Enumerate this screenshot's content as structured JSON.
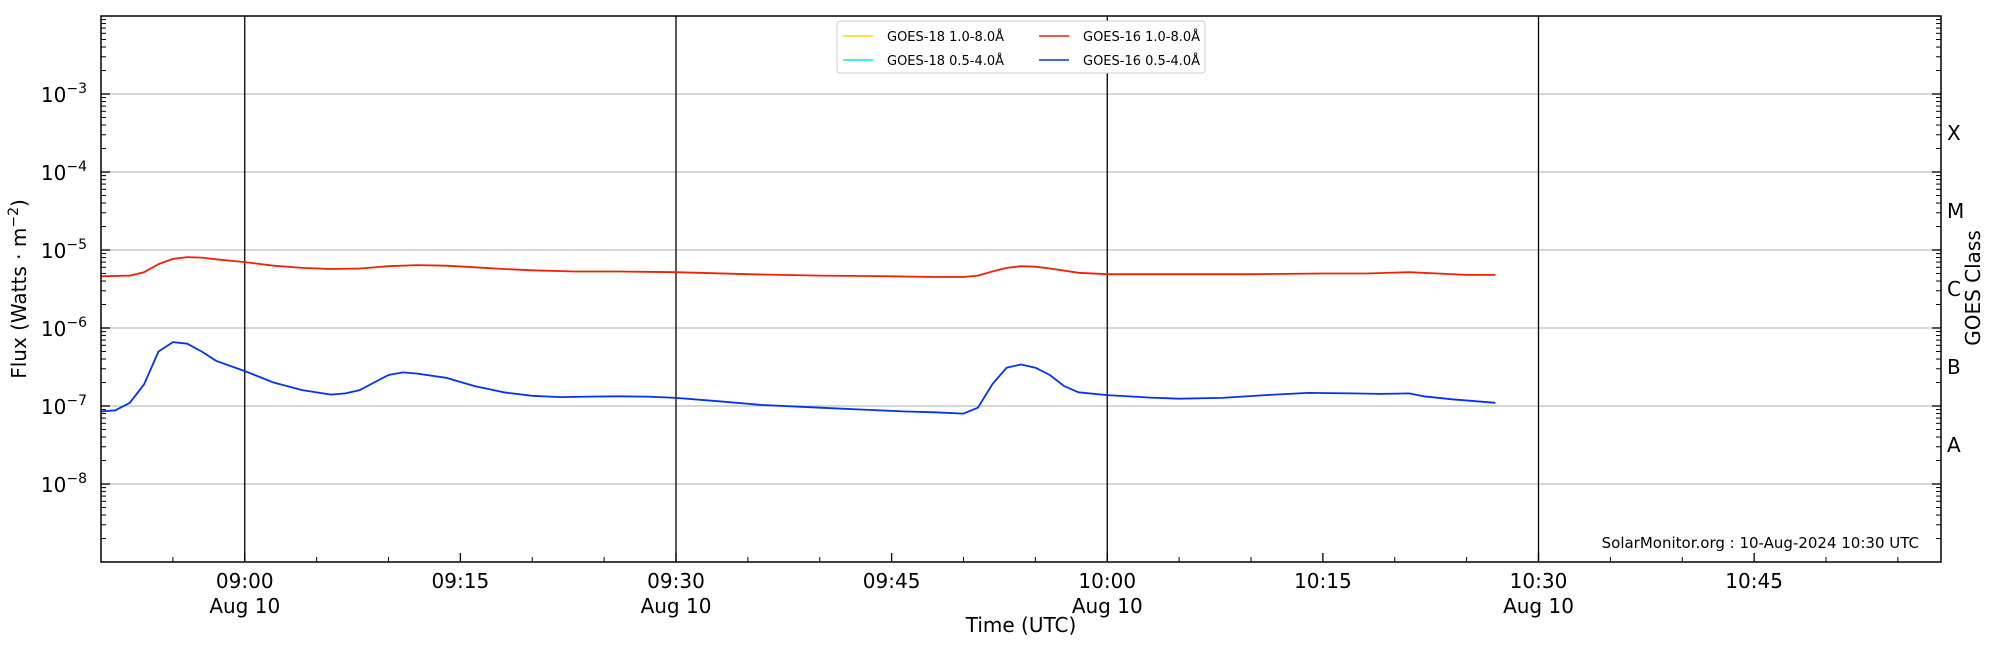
{
  "chart_data": {
    "type": "line",
    "title": "",
    "xlabel": "Time (UTC)",
    "ylabel": "Flux (Watts · m⁻²)",
    "ylabel_right": "GOES Class",
    "y_scale": "log",
    "ylim": [
      1e-09,
      0.01
    ],
    "xlim": [
      "08:50",
      "10:58"
    ],
    "x_ticks": [
      {
        "time": "09:00",
        "label": "09:00",
        "sublabel": "Aug 10"
      },
      {
        "time": "09:15",
        "label": "09:15",
        "sublabel": ""
      },
      {
        "time": "09:30",
        "label": "09:30",
        "sublabel": "Aug 10"
      },
      {
        "time": "09:45",
        "label": "09:45",
        "sublabel": ""
      },
      {
        "time": "10:00",
        "label": "10:00",
        "sublabel": "Aug 10"
      },
      {
        "time": "10:15",
        "label": "10:15",
        "sublabel": ""
      },
      {
        "time": "10:30",
        "label": "10:30",
        "sublabel": "Aug 10"
      },
      {
        "time": "10:45",
        "label": "10:45",
        "sublabel": ""
      }
    ],
    "day_boundary_lines": [
      "09:00",
      "09:30",
      "10:00",
      "10:30"
    ],
    "y_ticks": [
      {
        "value": 1e-08,
        "mantissa": "10",
        "exponent": "−8"
      },
      {
        "value": 1e-07,
        "mantissa": "10",
        "exponent": "−7"
      },
      {
        "value": 1e-06,
        "mantissa": "10",
        "exponent": "−6"
      },
      {
        "value": 1e-05,
        "mantissa": "10",
        "exponent": "−5"
      },
      {
        "value": 0.0001,
        "mantissa": "10",
        "exponent": "−4"
      },
      {
        "value": 0.001,
        "mantissa": "10",
        "exponent": "−3"
      }
    ],
    "gridlines_y": [
      1e-08,
      1e-07,
      1e-06,
      1e-05,
      0.0001,
      0.001
    ],
    "goes_classes": [
      {
        "label": "A",
        "value": 3.16e-08
      },
      {
        "label": "B",
        "value": 3.16e-07
      },
      {
        "label": "C",
        "value": 3.16e-06
      },
      {
        "label": "M",
        "value": 3.16e-05
      },
      {
        "label": "X",
        "value": 0.000316
      }
    ],
    "legend": {
      "placement": "top-center",
      "entries": [
        {
          "label": "GOES-18 1.0-8.0Å",
          "color": "#ffd700"
        },
        {
          "label": "GOES-18 0.5-4.0Å",
          "color": "#00e5ff"
        },
        {
          "label": "GOES-16 1.0-8.0Å",
          "color": "#ee2200"
        },
        {
          "label": "GOES-16 0.5-4.0Å",
          "color": "#0033ee"
        }
      ]
    },
    "credit": "SolarMonitor.org : 10-Aug-2024 10:30 UTC",
    "series": [
      {
        "name": "GOES-16 1.0-8.0Å",
        "color": "#ee2200",
        "points": [
          [
            "08:50",
            4.6e-06
          ],
          [
            "08:52",
            4.7e-06
          ],
          [
            "08:53",
            5.2e-06
          ],
          [
            "08:54",
            6.6e-06
          ],
          [
            "08:55",
            7.7e-06
          ],
          [
            "08:56",
            8.1e-06
          ],
          [
            "08:57",
            8e-06
          ],
          [
            "08:58",
            7.6e-06
          ],
          [
            "09:00",
            7e-06
          ],
          [
            "09:02",
            6.3e-06
          ],
          [
            "09:04",
            5.9e-06
          ],
          [
            "09:06",
            5.7e-06
          ],
          [
            "09:08",
            5.8e-06
          ],
          [
            "09:10",
            6.2e-06
          ],
          [
            "09:12",
            6.4e-06
          ],
          [
            "09:14",
            6.3e-06
          ],
          [
            "09:16",
            6e-06
          ],
          [
            "09:18",
            5.7e-06
          ],
          [
            "09:20",
            5.5e-06
          ],
          [
            "09:23",
            5.3e-06
          ],
          [
            "09:26",
            5.3e-06
          ],
          [
            "09:30",
            5.2e-06
          ],
          [
            "09:35",
            4.9e-06
          ],
          [
            "09:40",
            4.7e-06
          ],
          [
            "09:45",
            4.6e-06
          ],
          [
            "09:48",
            4.5e-06
          ],
          [
            "09:50",
            4.5e-06
          ],
          [
            "09:51",
            4.7e-06
          ],
          [
            "09:52",
            5.3e-06
          ],
          [
            "09:53",
            5.9e-06
          ],
          [
            "09:54",
            6.2e-06
          ],
          [
            "09:55",
            6.1e-06
          ],
          [
            "09:56",
            5.8e-06
          ],
          [
            "09:58",
            5.1e-06
          ],
          [
            "10:00",
            4.9e-06
          ],
          [
            "10:05",
            4.9e-06
          ],
          [
            "10:10",
            4.9e-06
          ],
          [
            "10:15",
            5e-06
          ],
          [
            "10:18",
            5e-06
          ],
          [
            "10:21",
            5.2e-06
          ],
          [
            "10:23",
            5e-06
          ],
          [
            "10:25",
            4.8e-06
          ],
          [
            "10:27",
            4.8e-06
          ]
        ]
      },
      {
        "name": "GOES-16 0.5-4.0Å",
        "color": "#0033ee",
        "points": [
          [
            "08:50",
            8.5e-08
          ],
          [
            "08:51",
            8.8e-08
          ],
          [
            "08:52",
            1.1e-07
          ],
          [
            "08:53",
            1.9e-07
          ],
          [
            "08:54",
            5e-07
          ],
          [
            "08:55",
            6.6e-07
          ],
          [
            "08:56",
            6.3e-07
          ],
          [
            "08:57",
            5e-07
          ],
          [
            "08:58",
            3.8e-07
          ],
          [
            "09:00",
            2.8e-07
          ],
          [
            "09:02",
            2e-07
          ],
          [
            "09:04",
            1.6e-07
          ],
          [
            "09:06",
            1.4e-07
          ],
          [
            "09:07",
            1.45e-07
          ],
          [
            "09:08",
            1.6e-07
          ],
          [
            "09:09",
            2e-07
          ],
          [
            "09:10",
            2.5e-07
          ],
          [
            "09:11",
            2.7e-07
          ],
          [
            "09:12",
            2.6e-07
          ],
          [
            "09:14",
            2.3e-07
          ],
          [
            "09:16",
            1.8e-07
          ],
          [
            "09:18",
            1.5e-07
          ],
          [
            "09:20",
            1.35e-07
          ],
          [
            "09:22",
            1.3e-07
          ],
          [
            "09:24",
            1.32e-07
          ],
          [
            "09:26",
            1.33e-07
          ],
          [
            "09:28",
            1.32e-07
          ],
          [
            "09:30",
            1.27e-07
          ],
          [
            "09:33",
            1.15e-07
          ],
          [
            "09:36",
            1.03e-07
          ],
          [
            "09:40",
            9.5e-08
          ],
          [
            "09:43",
            9e-08
          ],
          [
            "09:46",
            8.5e-08
          ],
          [
            "09:48",
            8.3e-08
          ],
          [
            "09:50",
            8e-08
          ],
          [
            "09:51",
            9.5e-08
          ],
          [
            "09:52",
            1.9e-07
          ],
          [
            "09:53",
            3.1e-07
          ],
          [
            "09:54",
            3.4e-07
          ],
          [
            "09:55",
            3.1e-07
          ],
          [
            "09:56",
            2.5e-07
          ],
          [
            "09:57",
            1.8e-07
          ],
          [
            "09:58",
            1.5e-07
          ],
          [
            "10:00",
            1.38e-07
          ],
          [
            "10:03",
            1.28e-07
          ],
          [
            "10:05",
            1.24e-07
          ],
          [
            "10:08",
            1.27e-07
          ],
          [
            "10:11",
            1.38e-07
          ],
          [
            "10:14",
            1.47e-07
          ],
          [
            "10:17",
            1.45e-07
          ],
          [
            "10:19",
            1.43e-07
          ],
          [
            "10:21",
            1.45e-07
          ],
          [
            "10:22",
            1.33e-07
          ],
          [
            "10:24",
            1.22e-07
          ],
          [
            "10:27",
            1.1e-07
          ]
        ]
      }
    ]
  }
}
